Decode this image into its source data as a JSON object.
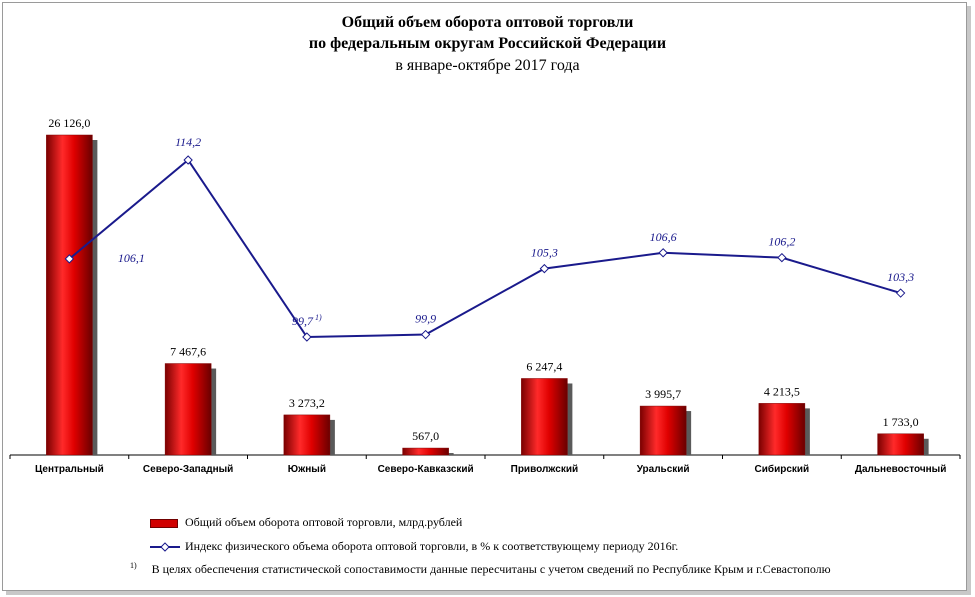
{
  "title": {
    "line1": "Общий объем оборота оптовой торговли",
    "line2": "по федеральным округам Российской Федерации",
    "line3": "в январе-октябре 2017 года"
  },
  "chart_data": {
    "type": "bar",
    "title": "Общий объем оборота оптовой торговли по федеральным округам Российской Федерации в январе-октябре 2017 года",
    "categories": [
      "Центральный",
      "Северо-Западный",
      "Южный",
      "Северо-Кавказский",
      "Приволжский",
      "Уральский",
      "Сибирский",
      "Дальневосточный"
    ],
    "series": [
      {
        "name": "Общий объем оборота оптовой торговли, млрд.рублей",
        "type": "bar",
        "values": [
          26126.0,
          7467.6,
          3273.2,
          567.0,
          6247.4,
          3995.7,
          4213.5,
          1733.0
        ],
        "labels": [
          "26 126,0",
          "7 467,6",
          "3 273,2",
          "567,0",
          "6 247,4",
          "3 995,7",
          "4 213,5",
          "1 733,0"
        ],
        "color": "#e00000"
      },
      {
        "name": "Индекс физического объема оборота оптовой торговли, в % к соответствующему периоду 2016г.",
        "type": "line",
        "values": [
          106.1,
          114.2,
          99.7,
          99.9,
          105.3,
          106.6,
          106.2,
          103.3
        ],
        "labels": [
          "106,1",
          "114,2",
          "99,7",
          "99,9",
          "105,3",
          "106,6",
          "106,2",
          "103,3"
        ],
        "color": "#1a1a8c"
      }
    ],
    "label_superscripts": [
      "",
      "",
      "1)",
      "",
      "",
      "",
      "",
      ""
    ],
    "footnote_mark": "1)",
    "footnote": "В целях обеспечения статистической сопоставимости данные пересчитаны с учетом сведений по Республике Крым и г.Севастополю"
  }
}
